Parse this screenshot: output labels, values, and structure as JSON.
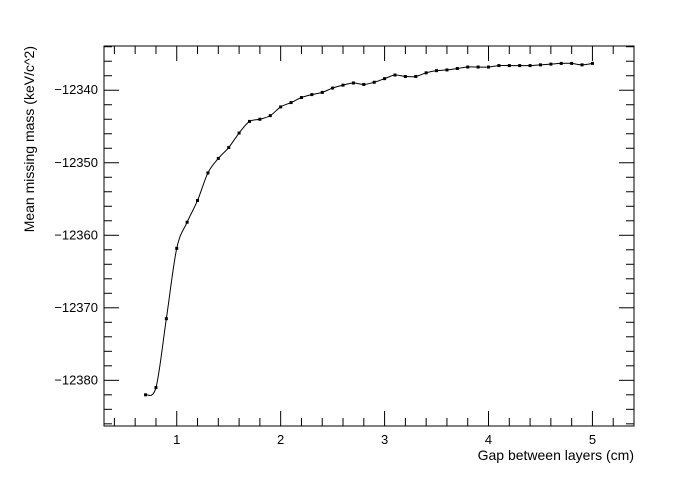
{
  "chart_data": {
    "type": "line",
    "title": "",
    "xlabel": "Gap between layers (cm)",
    "ylabel": "Mean missing mass (keV/c^2)",
    "xlim": [
      0.3,
      5.4
    ],
    "ylim": [
      -12386.3,
      -12333.9
    ],
    "x_ticks": [
      1,
      2,
      3,
      4,
      5
    ],
    "x_tick_labels": [
      "1",
      "2",
      "3",
      "4",
      "5"
    ],
    "y_ticks": [
      -12380,
      -12370,
      -12360,
      -12350,
      -12340
    ],
    "y_tick_labels": [
      "−12380",
      "−12370",
      "−12360",
      "−12350",
      "−12340"
    ],
    "grid": false,
    "legend": "none",
    "colors": {
      "line": "#000000",
      "marker": "#000000",
      "frame": "#000000"
    },
    "series": [
      {
        "x": [
          0.7,
          0.8,
          0.9,
          1.0,
          1.1,
          1.2,
          1.3,
          1.4,
          1.5,
          1.6,
          1.7,
          1.8,
          1.9,
          2.0,
          2.1,
          2.2,
          2.3,
          2.4,
          2.5,
          2.6,
          2.7,
          2.8,
          2.9,
          3.0,
          3.1,
          3.2,
          3.3,
          3.4,
          3.5,
          3.6,
          3.7,
          3.8,
          3.9,
          4.0,
          4.1,
          4.2,
          4.3,
          4.4,
          4.5,
          4.6,
          4.7,
          4.8,
          4.9,
          5.0
        ],
        "values": [
          -12382.0,
          -12381.0,
          -12371.5,
          -12361.8,
          -12358.2,
          -12355.2,
          -12351.4,
          -12349.4,
          -12347.9,
          -12345.9,
          -12344.3,
          -12344.0,
          -12343.5,
          -12342.3,
          -12341.7,
          -12341.0,
          -12340.6,
          -12340.3,
          -12339.7,
          -12339.3,
          -12339.0,
          -12339.2,
          -12338.9,
          -12338.4,
          -12337.9,
          -12338.1,
          -12338.1,
          -12337.6,
          -12337.3,
          -12337.2,
          -12337.0,
          -12336.8,
          -12336.8,
          -12336.8,
          -12336.6,
          -12336.6,
          -12336.6,
          -12336.6,
          -12336.5,
          -12336.4,
          -12336.3,
          -12336.3,
          -12336.5,
          -12336.3
        ]
      }
    ]
  }
}
